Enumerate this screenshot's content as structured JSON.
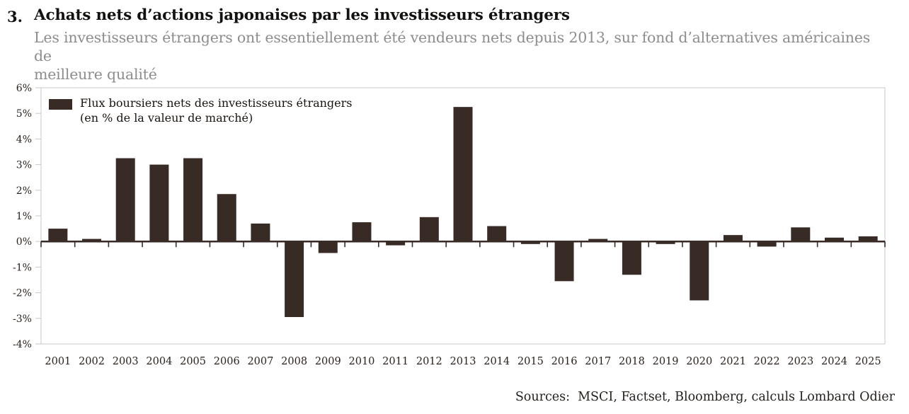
{
  "header": {
    "number": "3.",
    "title": "Achats nets d’actions japonaises par les investisseurs étrangers",
    "subtitle_lines": [
      "Les investisseurs étrangers ont essentiellement été vendeurs nets depuis 2013, sur fond d’alternatives américaines de",
      "meilleure qualité"
    ]
  },
  "legend": {
    "label_lines": [
      "Flux boursiers nets des investisseurs étrangers",
      "(en % de la valeur de marché)"
    ],
    "swatch_color": "#382a25"
  },
  "chart_data": {
    "type": "bar",
    "title": "Achats nets d’actions japonaises par les investisseurs étrangers",
    "series_name": "Flux boursiers nets des investisseurs étrangers (en % de la valeur de marché)",
    "categories": [
      "2001",
      "2002",
      "2003",
      "2004",
      "2005",
      "2006",
      "2007",
      "2008",
      "2009",
      "2010",
      "2011",
      "2012",
      "2013",
      "2014",
      "2015",
      "2016",
      "2017",
      "2018",
      "2019",
      "2020",
      "2021",
      "2022",
      "2023",
      "2024",
      "2025"
    ],
    "values": [
      0.5,
      0.1,
      3.25,
      3.0,
      3.25,
      1.85,
      0.7,
      -2.95,
      -0.45,
      0.75,
      -0.15,
      0.95,
      5.25,
      0.6,
      -0.1,
      -1.55,
      0.1,
      -1.3,
      -0.1,
      -2.3,
      0.25,
      -0.2,
      0.55,
      0.15,
      0.2
    ],
    "unit": "%",
    "xlabel": "",
    "ylabel": "",
    "ylim": [
      -4,
      6
    ],
    "ytick_labels": [
      "6%",
      "5%",
      "4%",
      "3%",
      "2%",
      "1%",
      "0%",
      "-1%",
      "-2%",
      "-3%",
      "-4%"
    ],
    "grid": false,
    "legend_position": "top-left",
    "bar_color": "#382a25",
    "axis_color": "#382a25",
    "frame_color": "#c9c9c9",
    "tick_label_color": "#2b211c"
  },
  "footer": {
    "sources": "Sources:  MSCI, Factset, Bloomberg, calculs Lombard Odier"
  }
}
